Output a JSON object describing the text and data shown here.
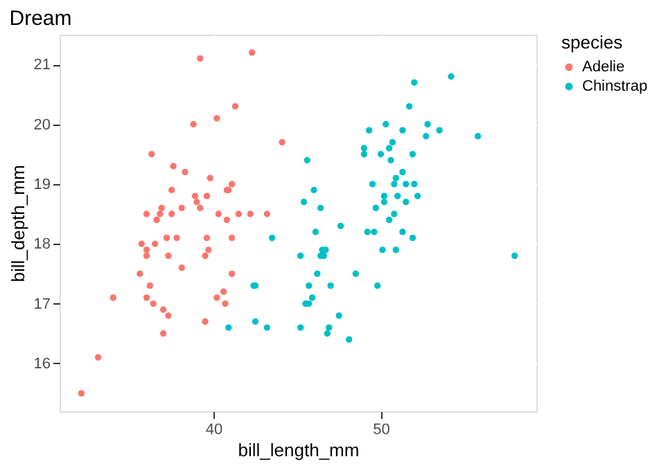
{
  "chart_data": {
    "type": "scatter",
    "title": "Dream",
    "xlabel": "bill_length_mm",
    "ylabel": "bill_depth_mm",
    "legend_title": "species",
    "xlim": [
      30.8,
      59.3
    ],
    "xticks": [
      40,
      50
    ],
    "ylim": [
      15.2,
      21.5
    ],
    "yticks": [
      16,
      17,
      18,
      19,
      20,
      21
    ],
    "grid": true,
    "legend": "right",
    "marker": "circle",
    "series": [
      {
        "name": "Adelie",
        "color": "#f8766d",
        "x": [
          39.2,
          38.8,
          40.2,
          36.3,
          37.6,
          38.3,
          39.8,
          37.5,
          40.8,
          40.9,
          38.9,
          39.6,
          39.0,
          36.9,
          38.1,
          39.2,
          36.0,
          36.8,
          37.5,
          40.3,
          36.6,
          40.8,
          37.2,
          37.8,
          39.6,
          35.7,
          36.5,
          36.0,
          39.7,
          36.0,
          37.3,
          39.5,
          38.1,
          35.6,
          36.2,
          34.0,
          36.0,
          36.4,
          37.0,
          37.3,
          39.5,
          37.0,
          33.1,
          32.1,
          40.2,
          40.6,
          40.7,
          42.3,
          41.3,
          44.1,
          41.1,
          41.5,
          42.2,
          43.2,
          41.1,
          41.1
        ],
        "values": [
          21.1,
          20.0,
          20.1,
          19.5,
          19.3,
          19.2,
          19.1,
          18.9,
          18.9,
          18.9,
          18.8,
          18.8,
          18.7,
          18.6,
          18.6,
          18.6,
          18.5,
          18.5,
          18.5,
          18.5,
          18.4,
          18.4,
          18.1,
          18.1,
          18.1,
          18.0,
          18.0,
          17.9,
          17.9,
          17.8,
          17.8,
          17.8,
          17.6,
          17.5,
          17.3,
          17.1,
          17.1,
          17.0,
          16.9,
          16.8,
          16.7,
          16.5,
          16.1,
          15.5,
          17.1,
          17.2,
          17.0,
          21.2,
          20.3,
          19.7,
          19.0,
          18.5,
          18.5,
          18.5,
          18.1,
          17.5
        ]
      },
      {
        "name": "Chinstrap",
        "color": "#00bfc4",
        "x": [
          40.9,
          42.4,
          42.5,
          42.5,
          43.2,
          43.5,
          45.2,
          45.2,
          45.5,
          45.7,
          45.7,
          45.9,
          46.1,
          46.2,
          46.5,
          46.7,
          46.4,
          46.6,
          46.8,
          46.9,
          47.0,
          47.5,
          47.6,
          48.1,
          48.5,
          49.2,
          49.6,
          49.8,
          50.1,
          50.5,
          50.9,
          51.3,
          51.9,
          45.6,
          46.0,
          45.4,
          46.4,
          49.0,
          49.0,
          49.3,
          50.3,
          51.3,
          50.7,
          50.5,
          50.0,
          50.6,
          51.9,
          51.3,
          50.9,
          49.5,
          50.8,
          51.5,
          52.0,
          50.2,
          51.0,
          50.2,
          51.5,
          49.7,
          50.8,
          51.7,
          52.0,
          54.2,
          52.8,
          53.5,
          52.7,
          55.8,
          52.2,
          58.0
        ],
        "values": [
          16.6,
          17.3,
          17.3,
          16.7,
          16.6,
          18.1,
          17.8,
          16.6,
          17.0,
          17.0,
          17.3,
          17.1,
          18.2,
          17.5,
          17.9,
          17.9,
          17.8,
          17.8,
          16.5,
          16.6,
          17.3,
          16.8,
          18.3,
          16.4,
          17.5,
          18.2,
          18.2,
          17.3,
          17.9,
          18.4,
          17.9,
          18.2,
          18.1,
          19.4,
          18.9,
          18.7,
          18.6,
          19.6,
          19.5,
          19.9,
          20.0,
          19.9,
          19.7,
          19.6,
          19.5,
          19.4,
          19.5,
          19.2,
          19.1,
          19.0,
          19.0,
          19.0,
          19.0,
          18.8,
          18.8,
          18.7,
          18.7,
          18.6,
          18.5,
          20.3,
          20.7,
          20.8,
          20.0,
          19.9,
          19.8,
          19.8,
          18.8,
          17.8
        ]
      }
    ]
  }
}
